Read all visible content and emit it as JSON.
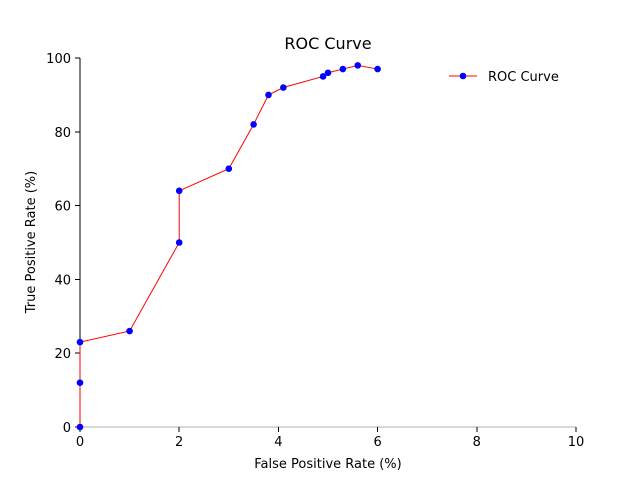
{
  "chart_data": {
    "type": "line",
    "title": "ROC Curve",
    "xlabel": "False Positive Rate (%)",
    "ylabel": "True Positive Rate (%)",
    "xlim": [
      0,
      10
    ],
    "ylim": [
      0,
      100
    ],
    "xticks": [
      0,
      2,
      4,
      6,
      8,
      10
    ],
    "yticks": [
      0,
      20,
      40,
      60,
      80,
      100
    ],
    "grid": false,
    "legend_position": "top-right",
    "series": [
      {
        "name": "ROC Curve",
        "line_color": "#ff0000",
        "marker_color": "#0000ff",
        "x": [
          0,
          0,
          0,
          1,
          2,
          2,
          3,
          3.5,
          3.8,
          4.1,
          4.9,
          5.0,
          5.3,
          5.6,
          6.0
        ],
        "y": [
          0,
          12,
          23,
          26,
          50,
          64,
          70,
          82,
          90,
          92,
          95,
          96,
          97,
          98,
          97
        ]
      }
    ]
  }
}
